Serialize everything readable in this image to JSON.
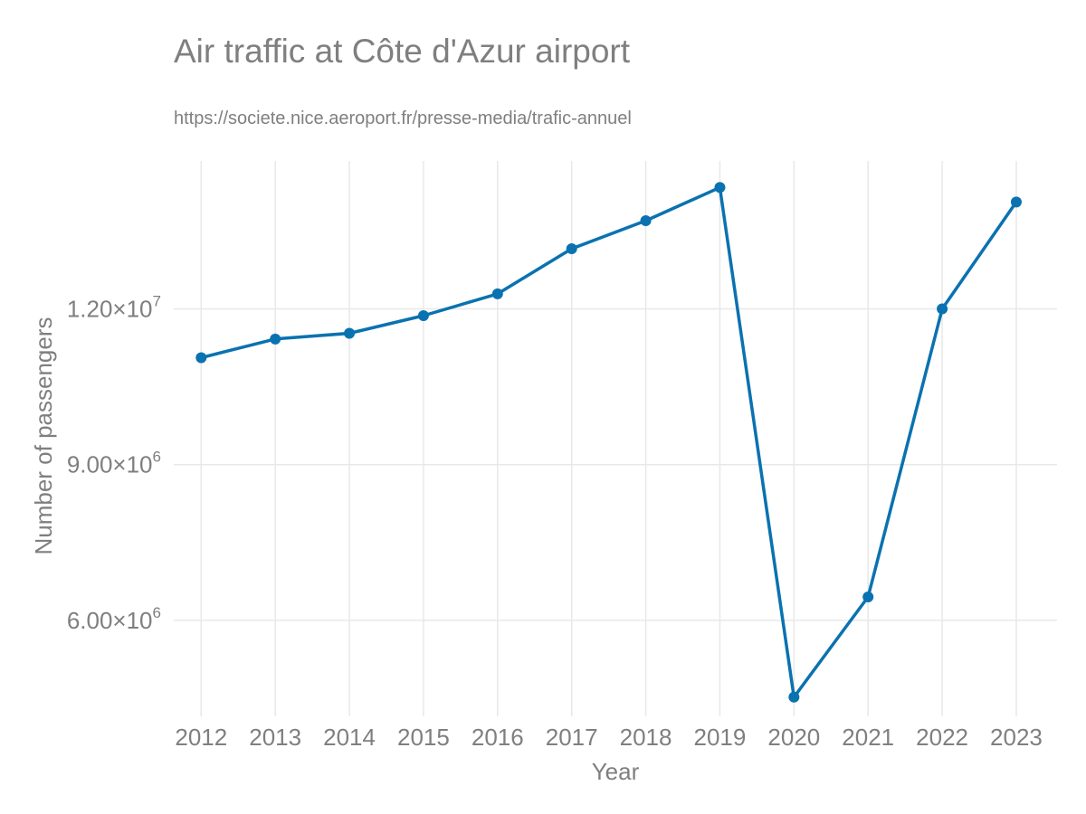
{
  "chart_data": {
    "type": "line",
    "title": "Air traffic at Côte d'Azur airport",
    "subtitle": "https://societe.nice.aeroport.fr/presse-media/trafic-annuel",
    "xlabel": "Year",
    "ylabel": "Number of passengers",
    "x": [
      2012,
      2013,
      2014,
      2015,
      2016,
      2017,
      2018,
      2019,
      2020,
      2021,
      2022,
      2023
    ],
    "series": [
      {
        "values": [
          11060000,
          11420000,
          11530000,
          11870000,
          12290000,
          13160000,
          13700000,
          14340000,
          4520000,
          6450000,
          12000000,
          14060000
        ],
        "color": "#0a72b0"
      }
    ],
    "y_ticks": [
      6000000,
      9000000,
      12000000
    ],
    "y_tick_labels": [
      {
        "mantissa": "6.00×10",
        "exp": "6"
      },
      {
        "mantissa": "9.00×10",
        "exp": "6"
      },
      {
        "mantissa": "1.20×10",
        "exp": "7"
      }
    ],
    "ylim": [
      4150000,
      14850000
    ],
    "xlim": [
      2011.63,
      2023.55
    ],
    "grid": true,
    "legend": "none"
  }
}
